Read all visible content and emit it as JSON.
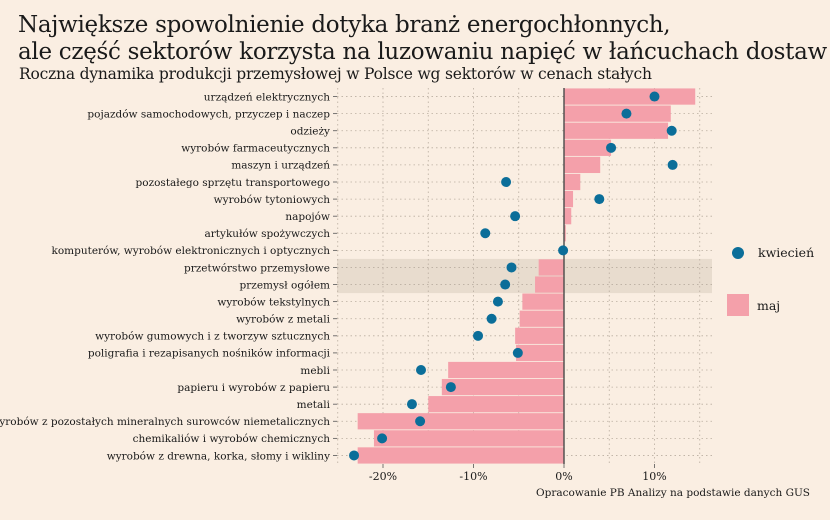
{
  "title_lines": [
    "Największe spowolnienie dotyka branż energochłonnych,",
    "ale część sektorów korzysta na luzowaniu napięć w łańcuchach dostaw"
  ],
  "subtitle": "Roczna dynamika produkcji przemysłowej w Polsce wg sektorów w cenach stałych",
  "source": "Opracowanie PB Analizy na podstawie danych GUS",
  "colors": {
    "background": "#faeee2",
    "dot": "#0b6e99",
    "bar": "#f4a0aa",
    "highlight": "#e8dcce"
  },
  "legend": {
    "dot_label": "kwiecień",
    "bar_label": "maj"
  },
  "chart_data": {
    "type": "bar",
    "orientation": "horizontal",
    "xlim": [
      -25,
      16
    ],
    "xticks": [
      -20,
      -10,
      0,
      10
    ],
    "xtick_labels": [
      "-20%",
      "-10%",
      "0%",
      "10%"
    ],
    "grid": true,
    "highlighted_categories": [
      "przetwórstwo przemysłowe",
      "przemysł ogółem"
    ],
    "categories": [
      "urządzeń elektrycznych",
      "pojazdów samochodowych, przyczep i naczep",
      "odzieży",
      "wyrobów farmaceutycznych",
      "maszyn i urządzeń",
      "pozostałego sprzętu transportowego",
      "wyrobów tytoniowych",
      "napojów",
      "artykułów spożywczych",
      "komputerów, wyrobów elektronicznych i optycznych",
      "przetwórstwo przemysłowe",
      "przemysł ogółem",
      "wyrobów tekstylnych",
      "wyrobów z metali",
      "wyrobów gumowych i z tworzyw sztucznych",
      "poligrafia i rezapisanych nośników informacji",
      "mebli",
      "papieru i wyrobów z papieru",
      "metali",
      "wyrobów z pozostałych mineralnych surowców niemetalicznych",
      "chemikaliów i wyrobów chemicznych",
      "wyrobów z drewna, korka, słomy i wikliny"
    ],
    "series": [
      {
        "name": "maj",
        "kind": "bar",
        "values": [
          14.5,
          11.8,
          11.5,
          5.2,
          4.0,
          1.8,
          1.0,
          0.8,
          0.2,
          0.0,
          -2.8,
          -3.2,
          -4.6,
          -4.9,
          -5.4,
          -5.3,
          -12.8,
          -13.5,
          -15.0,
          -22.8,
          -21.0,
          -22.8
        ]
      },
      {
        "name": "kwiecień",
        "kind": "dot",
        "values": [
          10.0,
          6.9,
          11.9,
          5.2,
          12.0,
          -6.4,
          3.9,
          -5.4,
          -8.7,
          -0.1,
          -5.8,
          -6.5,
          -7.3,
          -8.0,
          -9.5,
          -5.1,
          -15.8,
          -12.5,
          -16.8,
          -15.9,
          -20.1,
          -23.2
        ]
      }
    ]
  }
}
